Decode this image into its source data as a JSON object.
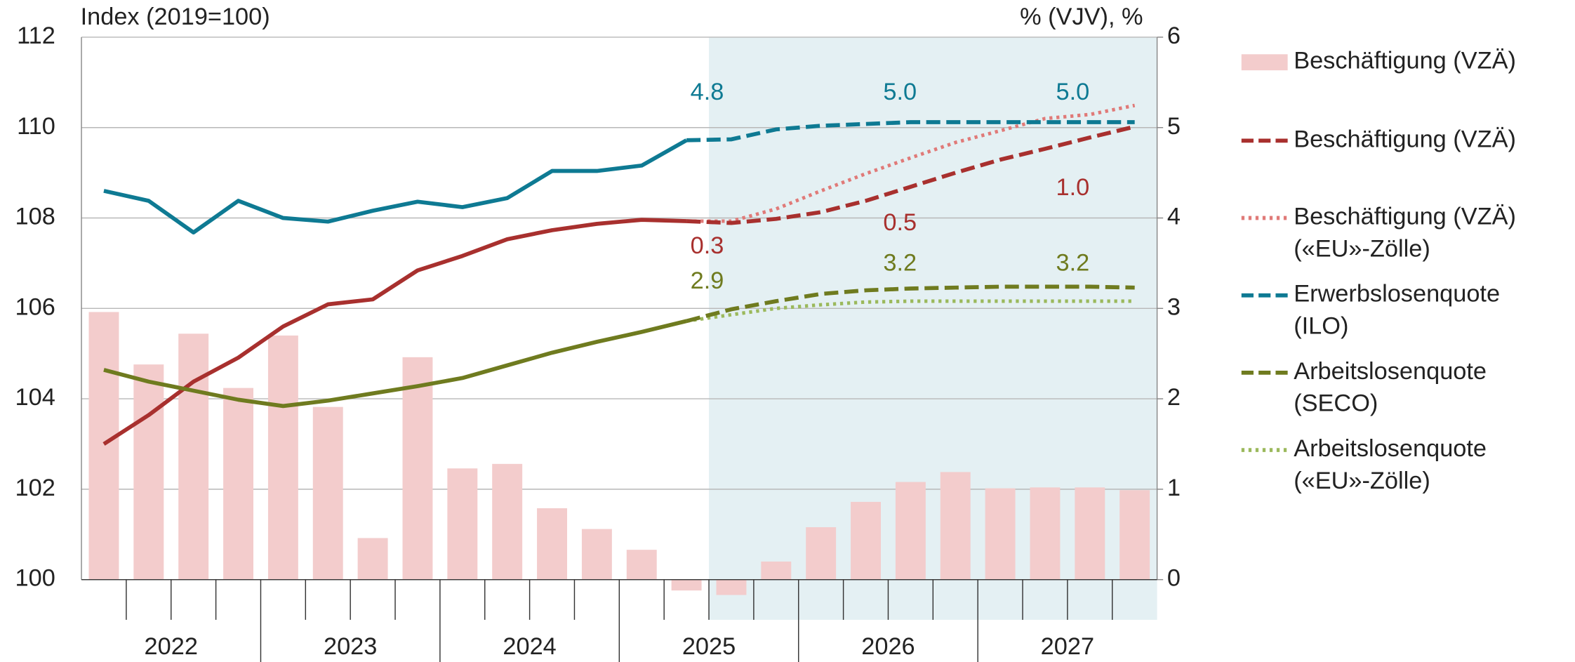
{
  "chart_data": {
    "type": "bar-line",
    "y_axis_label": "Index (2019=100)",
    "y2_axis_label": "% (VJV), %",
    "categories": [
      null,
      null,
      null,
      null,
      null,
      null,
      null,
      null,
      null,
      null,
      null,
      null,
      null,
      null,
      null,
      null,
      null,
      null,
      null,
      null,
      null,
      null,
      null,
      null
    ],
    "year_labels": [
      "2022",
      "2023",
      "2024",
      "2025",
      "2026",
      "2027"
    ],
    "ylim": [
      100,
      112
    ],
    "yticks": [
      100,
      102,
      104,
      106,
      108,
      110,
      112
    ],
    "y2lim": [
      0,
      6
    ],
    "y2ticks": [
      0,
      1,
      2,
      3,
      4,
      5,
      6
    ],
    "grid": true,
    "forecast_shading_color": "#e4f0f3",
    "series": [
      {
        "name": "Beschäftigung (VZÄ)",
        "type": "bar",
        "axis": "y2",
        "color": "#f3cccc",
        "values": [
          2.96,
          2.38,
          2.72,
          2.12,
          2.7,
          1.91,
          0.46,
          2.46,
          1.23,
          1.28,
          0.79,
          0.56,
          0.33,
          -0.12,
          -0.17,
          0.2,
          0.58,
          0.86,
          1.08,
          1.19,
          1.01,
          1.02,
          1.02,
          0.99
        ]
      },
      {
        "name": "Beschäftigung (VZÄ)",
        "type": "line",
        "axis": "y",
        "color": "#a8302e",
        "dashed_from_index": 13,
        "values": [
          103.0,
          103.64,
          104.38,
          104.91,
          105.6,
          106.09,
          106.2,
          106.84,
          107.16,
          107.53,
          107.73,
          107.87,
          107.96,
          107.93,
          107.89,
          107.98,
          108.13,
          108.38,
          108.69,
          109.0,
          109.29,
          109.53,
          109.78,
          110.02
        ]
      },
      {
        "name": "Beschäftigung (VZÄ)\n(«EU»-Zölle)",
        "type": "dotted",
        "axis": "y",
        "color": "#e07a78",
        "values": [
          null,
          null,
          null,
          null,
          null,
          null,
          null,
          null,
          null,
          null,
          null,
          null,
          null,
          107.93,
          107.93,
          108.2,
          108.6,
          108.98,
          109.33,
          109.67,
          109.93,
          110.2,
          110.29,
          110.49
        ]
      },
      {
        "name": "Erwerbslosenquote\n(ILO)",
        "type": "line",
        "axis": "y2",
        "color": "#0e7a93",
        "dashed_from_index": 13,
        "values": [
          4.3,
          4.19,
          3.84,
          4.19,
          4.0,
          3.96,
          4.08,
          4.18,
          4.12,
          4.22,
          4.52,
          4.52,
          4.58,
          4.86,
          4.87,
          4.98,
          5.02,
          5.04,
          5.06,
          5.06,
          5.06,
          5.06,
          5.06,
          5.06
        ]
      },
      {
        "name": "Arbeitslosenquote\n(SECO)",
        "type": "line",
        "axis": "y2",
        "color": "#6f7b1f",
        "dashed_from_index": 13,
        "values": [
          2.32,
          2.19,
          2.09,
          1.99,
          1.92,
          1.98,
          2.06,
          2.14,
          2.23,
          2.37,
          2.51,
          2.63,
          2.74,
          2.86,
          2.99,
          3.08,
          3.16,
          3.2,
          3.22,
          3.23,
          3.24,
          3.24,
          3.24,
          3.23
        ]
      },
      {
        "name": "Arbeitslosenquote\n(«EU»-Zölle)",
        "type": "dotted",
        "axis": "y2",
        "color": "#9bb95c",
        "values": [
          null,
          null,
          null,
          null,
          null,
          null,
          null,
          null,
          null,
          null,
          null,
          null,
          null,
          2.86,
          2.93,
          3.0,
          3.04,
          3.07,
          3.08,
          3.08,
          3.08,
          3.08,
          3.08,
          3.08
        ]
      }
    ],
    "annotations": [
      {
        "text": "4.8",
        "color": "#0e7a93"
      },
      {
        "text": "5.0",
        "color": "#0e7a93"
      },
      {
        "text": "5.0",
        "color": "#0e7a93"
      },
      {
        "text": "1.0",
        "color": "#a8302e"
      },
      {
        "text": "0.5",
        "color": "#a8302e"
      },
      {
        "text": "0.3",
        "color": "#a8302e"
      },
      {
        "text": "2.9",
        "color": "#6f7b1f"
      },
      {
        "text": "3.2",
        "color": "#6f7b1f"
      },
      {
        "text": "3.2",
        "color": "#6f7b1f"
      }
    ]
  }
}
